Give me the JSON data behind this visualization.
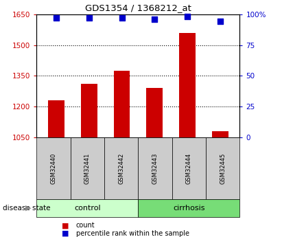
{
  "title": "GDS1354 / 1368212_at",
  "samples": [
    "GSM32440",
    "GSM32441",
    "GSM32442",
    "GSM32443",
    "GSM32444",
    "GSM32445"
  ],
  "bar_values": [
    1230,
    1310,
    1375,
    1290,
    1560,
    1080
  ],
  "percentile_values": [
    97,
    97,
    97,
    96,
    98,
    94
  ],
  "ylim_left": [
    1050,
    1650
  ],
  "ylim_right": [
    0,
    100
  ],
  "yticks_left": [
    1050,
    1200,
    1350,
    1500,
    1650
  ],
  "yticks_right": [
    0,
    25,
    50,
    75,
    100
  ],
  "ytick_labels_right": [
    "0",
    "25",
    "50",
    "75",
    "100%"
  ],
  "bar_color": "#cc0000",
  "dot_color": "#0000cc",
  "grid_color": "black",
  "groups": [
    {
      "label": "control",
      "samples_idx": [
        0,
        1,
        2
      ],
      "color": "#ccffcc"
    },
    {
      "label": "cirrhosis",
      "samples_idx": [
        3,
        4,
        5
      ],
      "color": "#77dd77"
    }
  ],
  "disease_label": "disease state",
  "legend_items": [
    {
      "label": "count",
      "color": "#cc0000"
    },
    {
      "label": "percentile rank within the sample",
      "color": "#0000cc"
    }
  ],
  "background_color": "#ffffff",
  "axis_label_color_left": "#cc0000",
  "axis_label_color_right": "#0000cc",
  "bar_width": 0.5,
  "dot_size": 35
}
